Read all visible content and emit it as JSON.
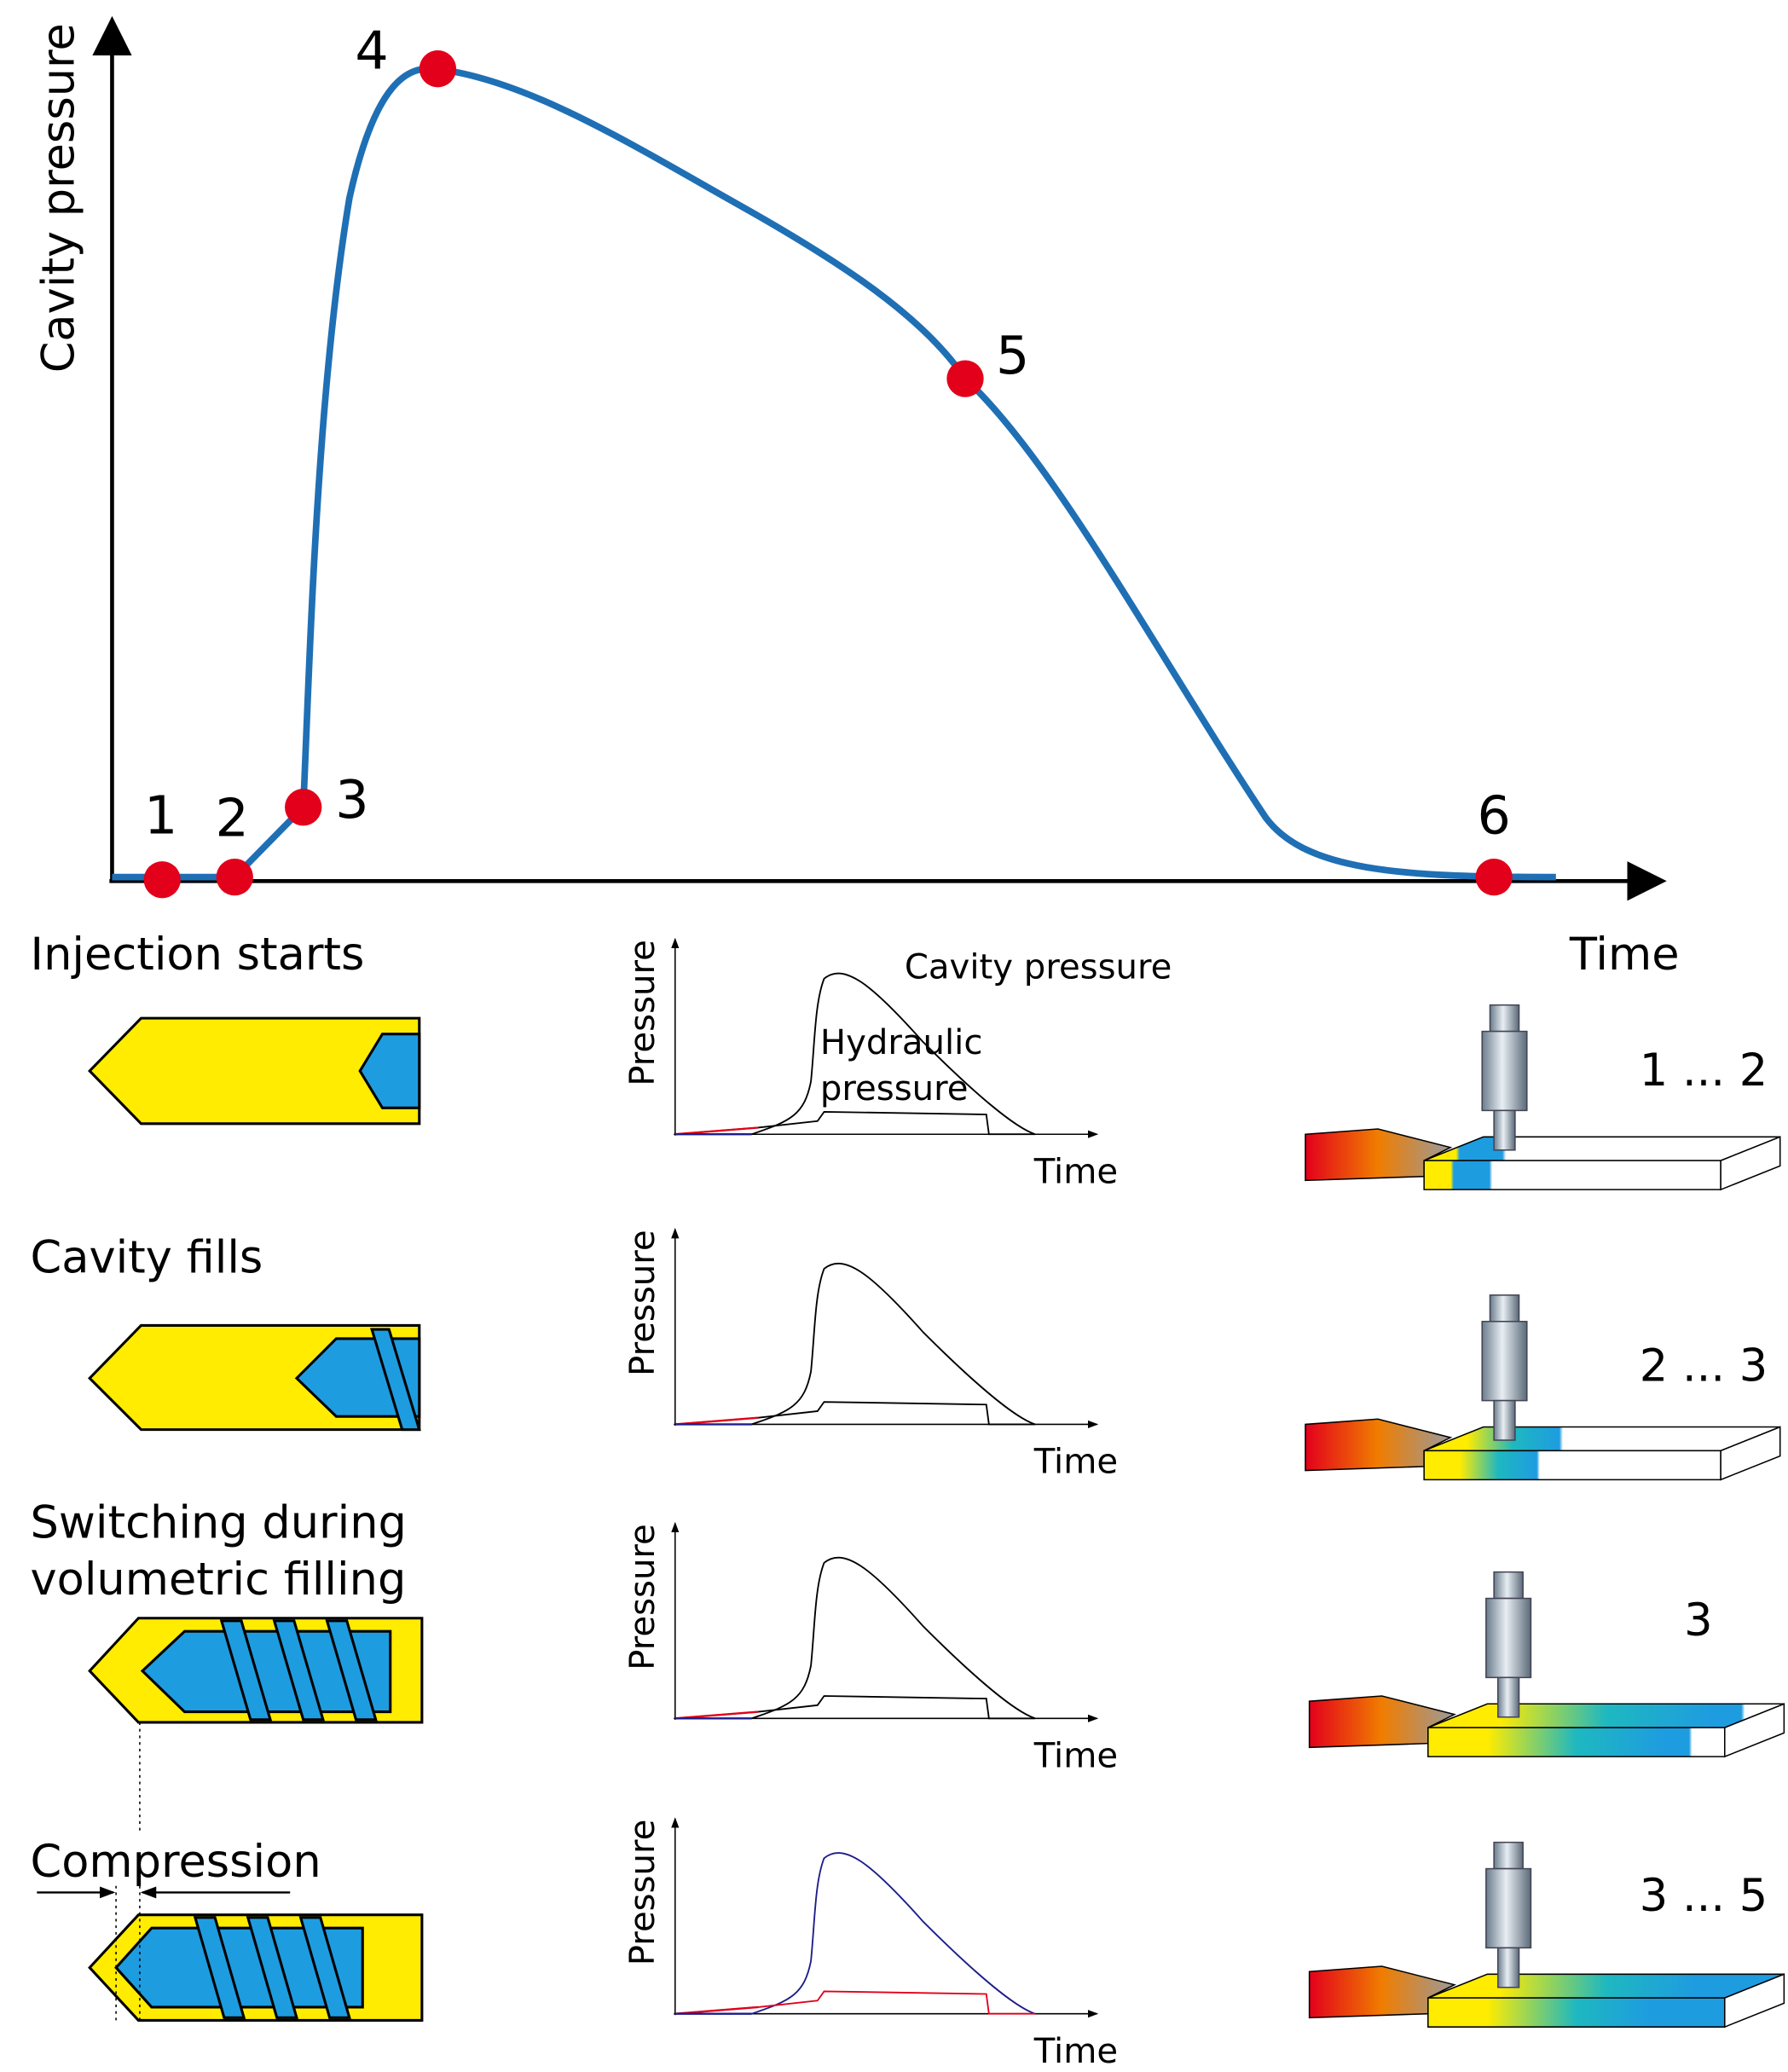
{
  "main_chart": {
    "y_label": "Cavity pressure",
    "x_label": "Time",
    "points": [
      1,
      2,
      3,
      4,
      5,
      6
    ]
  },
  "stages": [
    {
      "label": [
        "Injection starts"
      ],
      "range": "1 ... 2"
    },
    {
      "label": [
        "Cavity fills"
      ],
      "range": "2 ... 3"
    },
    {
      "label": [
        "Switching during",
        "volumetric filling"
      ],
      "range": "3"
    },
    {
      "label": [
        "Compression"
      ],
      "range": "3 ... 5"
    }
  ],
  "mini_charts": {
    "y_label": "Pressure",
    "x_label": "Time",
    "cavity_label": "Cavity pressure",
    "hydraulic_label": [
      "Hydraulic",
      "pressure"
    ]
  }
}
